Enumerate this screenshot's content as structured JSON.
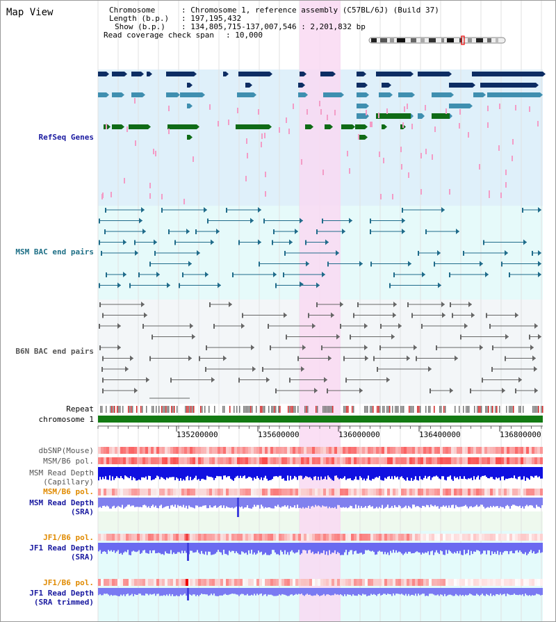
{
  "view_title": "Map View",
  "info": {
    "chromosome_key": "Chromosome",
    "chromosome_value": "Chromosome 1, reference assembly (C57BL/6J) (Build 37)",
    "length_key": "Length (b.p.)",
    "length_value": "197,195,432",
    "show_key": "Show (b.p.)",
    "show_value": "134,805,715-137,007,546 : 2,201,832 bp",
    "span_key": "Read coverage check span",
    "span_value": "10,000"
  },
  "tracks": {
    "refseq": "RefSeq Genes",
    "msm_bac": "MSM BAC end pairs",
    "b6n_bac": "B6N BAC end pairs",
    "repeat": "Repeat",
    "chromosome": "chromosome 1",
    "dbsnp": "dbSNP(Mouse)",
    "msm_b6_pol_1": "MSM/B6 pol.",
    "msm_depth_cap_1": "MSM Read Depth",
    "msm_depth_cap_2": "(Capillary)",
    "msm_b6_pol_2": "MSM/B6 pol.",
    "msm_depth_sra_1": "MSM Read Depth",
    "msm_depth_sra_2": "(SRA)",
    "jf1_b6_pol_1": "JF1/B6 pol.",
    "jf1_depth_sra_1": "JF1 Read Depth",
    "jf1_depth_sra_2": "(SRA)",
    "jf1_b6_pol_2": "JF1/B6 pol.",
    "jf1_depth_trim_1": "JF1 Read Depth",
    "jf1_depth_trim_2": "(SRA trimmed)"
  },
  "axis": {
    "ticks": [
      "135200000",
      "135600000",
      "136000000",
      "136400000",
      "136800000"
    ]
  },
  "colors": {
    "refseq_bg": "#dff0fa",
    "msm_bac_bg": "#e6fafa",
    "b6n_bac_bg": "#f3f6f8",
    "highlight": "#f9d9f2",
    "gene_dark": "#0d2d63",
    "gene_mid": "#3f8fb0",
    "gene_green": "#0f6b16",
    "gene_pink": "#f39cc6",
    "bac_msm": "#1f6b8a",
    "bac_b6n": "#666666",
    "chromosome_bar": "#137a13",
    "label_teal": "#1e6f86",
    "label_blue": "#1a1aa0",
    "label_orange": "#e08a00",
    "label_gray": "#555555"
  }
}
